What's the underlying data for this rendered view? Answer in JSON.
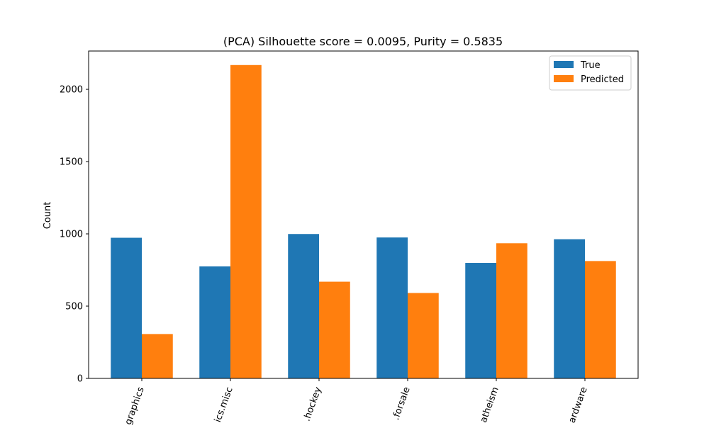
{
  "chart_data": {
    "type": "bar",
    "title": "(PCA) Silhouette score = 0.0095, Purity = 0.5835",
    "xlabel": "",
    "ylabel": "Count",
    "ylim": [
      0,
      2265
    ],
    "yticks": [
      0,
      500,
      1000,
      1500,
      2000
    ],
    "categories": [
      "graphics",
      "ics.misc",
      ".hockey",
      ".forsale",
      "atheism",
      "ardware"
    ],
    "series": [
      {
        "name": "True",
        "color": "#1f77b4",
        "values": [
          973,
          775,
          999,
          975,
          799,
          963
        ]
      },
      {
        "name": "Predicted",
        "color": "#ff7f0e",
        "values": [
          307,
          2168,
          669,
          591,
          935,
          812
        ]
      }
    ],
    "legend_position": "top-right",
    "grid": false,
    "xtick_rotation": 70
  }
}
